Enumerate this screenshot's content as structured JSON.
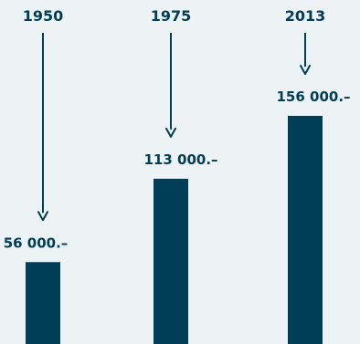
{
  "chart_data": {
    "type": "bar",
    "categories": [
      "1950",
      "1975",
      "2013"
    ],
    "values": [
      56000,
      113000,
      156000
    ],
    "value_labels": [
      "56 000.–",
      "113 000.–",
      "156 000.–"
    ],
    "title": "",
    "xlabel": "",
    "ylabel": "",
    "ylim": [
      0,
      156000
    ],
    "grid": false,
    "legend": "none"
  },
  "colors": {
    "background": "#edf2f4",
    "bar": "#003d56",
    "text": "#003d56",
    "arrow": "#003d56"
  }
}
